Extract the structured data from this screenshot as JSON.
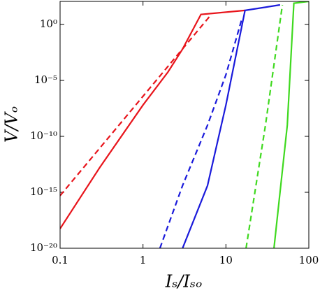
{
  "chart_data": {
    "type": "line",
    "xlabel": "Iₛ/Iₛₒ",
    "ylabel": "V/Vₒ",
    "xscale": "log",
    "yscale": "log",
    "xlim": [
      0.1,
      100
    ],
    "ylim": [
      1e-20,
      115
    ],
    "xticks": [
      0.1,
      1,
      10,
      100
    ],
    "yticks": [
      {
        "value": 1e-20,
        "label": "10⁻²⁰"
      },
      {
        "value": 1e-15,
        "label": "10⁻¹⁵"
      },
      {
        "value": 1e-10,
        "label": "10⁻¹⁰"
      },
      {
        "value": 1e-05,
        "label": "10⁻⁵"
      },
      {
        "value": 1,
        "label": "10⁰"
      }
    ],
    "series": [
      {
        "color": "#e8141b",
        "dash": false,
        "x": [
          0.1,
          0.3,
          1,
          2,
          3,
          5,
          17
        ],
        "values": [
          5.6e-19,
          1.6e-13,
          6.3e-08,
          5.6e-05,
          0.0063,
          7.9,
          18
        ]
      },
      {
        "color": "#e8141b",
        "dash": true,
        "x": [
          0.1,
          6.5
        ],
        "values": [
          5e-16,
          6.3
        ]
      },
      {
        "color": "#1a1adb",
        "dash": true,
        "x": [
          1.6,
          3,
          6,
          10,
          15.5
        ],
        "values": [
          1e-20,
          4e-15,
          1e-09,
          3.2e-05,
          2.8
        ]
      },
      {
        "color": "#1a1adb",
        "dash": false,
        "x": [
          3,
          6,
          10,
          17,
          45
        ],
        "values": [
          1e-20,
          4e-15,
          6.3e-08,
          18,
          56
        ]
      },
      {
        "color": "#3fd91f",
        "dash": true,
        "x": [
          17.5,
          30,
          48
        ],
        "values": [
          1e-20,
          1e-09,
          56
        ]
      },
      {
        "color": "#3fd91f",
        "dash": false,
        "x": [
          38,
          55,
          66,
          100
        ],
        "values": [
          1e-20,
          1e-09,
          79,
          115
        ]
      }
    ]
  }
}
